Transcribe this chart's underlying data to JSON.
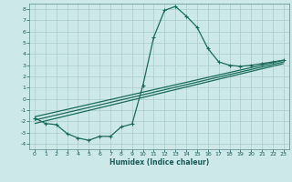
{
  "xlabel": "Humidex (Indice chaleur)",
  "bg_color": "#cce8e8",
  "grid_color": "#aacccc",
  "line_color": "#1a6b5a",
  "xlim": [
    -0.5,
    23.5
  ],
  "ylim": [
    -4.5,
    8.5
  ],
  "xticks": [
    0,
    1,
    2,
    3,
    4,
    5,
    6,
    7,
    8,
    9,
    10,
    11,
    12,
    13,
    14,
    15,
    16,
    17,
    18,
    19,
    20,
    21,
    22,
    23
  ],
  "yticks": [
    -4,
    -3,
    -2,
    -1,
    0,
    1,
    2,
    3,
    4,
    5,
    6,
    7,
    8
  ],
  "line1_x": [
    0,
    1,
    2,
    3,
    4,
    5,
    6,
    7,
    8,
    9,
    10,
    11,
    12,
    13,
    14,
    15,
    16,
    17,
    18,
    19,
    20,
    21,
    22,
    23
  ],
  "line1_y": [
    -1.7,
    -2.2,
    -2.3,
    -3.1,
    -3.5,
    -3.7,
    -3.35,
    -3.35,
    -2.5,
    -2.25,
    1.2,
    5.5,
    7.9,
    8.25,
    7.4,
    6.4,
    4.5,
    3.3,
    3.0,
    2.9,
    3.0,
    3.15,
    3.3,
    3.45
  ],
  "line2_x": [
    0,
    23
  ],
  "line2_y": [
    -1.6,
    3.45
  ],
  "line3_x": [
    0,
    23
  ],
  "line3_y": [
    -1.9,
    3.3
  ],
  "line4_x": [
    0,
    23
  ],
  "line4_y": [
    -2.2,
    3.15
  ]
}
